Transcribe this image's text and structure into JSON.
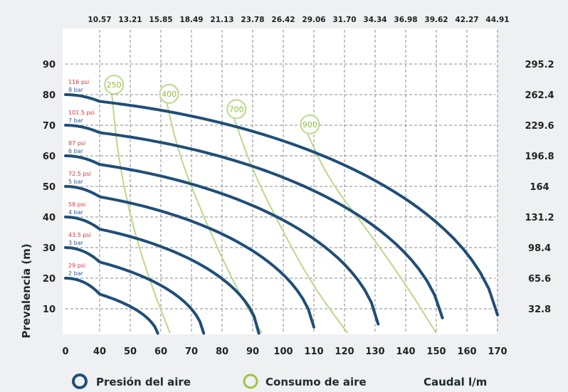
{
  "chart_data": {
    "type": "line",
    "xlabel": "Caudal l/m",
    "ylabel": "Prevalencia (m)",
    "xlim": [
      0,
      170
    ],
    "ylim": [
      0,
      90
    ],
    "x_ticks": [
      "0",
      "40",
      "50",
      "60",
      "70",
      "80",
      "90",
      "100",
      "110",
      "120",
      "130",
      "140",
      "150",
      "160",
      "170"
    ],
    "y_ticks": [
      "10",
      "20",
      "30",
      "40",
      "50",
      "60",
      "70",
      "80",
      "90"
    ],
    "top_ticks": [
      "10.57",
      "13.21",
      "15.85",
      "18.49",
      "21.13",
      "23.78",
      "26.42",
      "29.06",
      "31.70",
      "34.34",
      "36.98",
      "39.62",
      "42.27",
      "44.91"
    ],
    "right_ticks": [
      "32.8",
      "65.6",
      "98.4",
      "131.2",
      "164",
      "196.8",
      "229.6",
      "262.4",
      "295.2"
    ],
    "grid": true,
    "legend": [
      {
        "label": "Presión del aire",
        "color": "#1f4e79"
      },
      {
        "label": "Consumo de aire",
        "color": "#9dc447"
      }
    ],
    "pressure_curves": [
      {
        "psi": "29 psi",
        "bar": "2 bar",
        "start": [
          0,
          20
        ],
        "end": [
          59,
          2
        ]
      },
      {
        "psi": "43.5 psi",
        "bar": "3 bar",
        "start": [
          0,
          30
        ],
        "end": [
          74,
          2
        ]
      },
      {
        "psi": "58 psi",
        "bar": "4 bar",
        "start": [
          0,
          40
        ],
        "end": [
          92,
          2
        ]
      },
      {
        "psi": "72.5 psi",
        "bar": "5 bar",
        "start": [
          0,
          50
        ],
        "end": [
          110,
          4
        ]
      },
      {
        "psi": "87 psi",
        "bar": "6 bar",
        "start": [
          0,
          60
        ],
        "end": [
          131,
          5
        ]
      },
      {
        "psi": "101.5 psi",
        "bar": "7 bar",
        "start": [
          0,
          70
        ],
        "end": [
          152,
          7
        ]
      },
      {
        "psi": "116 psi",
        "bar": "8 bar",
        "start": [
          0,
          80
        ],
        "end": [
          170,
          8
        ]
      }
    ],
    "air_consumption": [
      {
        "label": "250",
        "points": [
          [
            44,
            80
          ],
          [
            46,
            60
          ],
          [
            50,
            40
          ],
          [
            56,
            20
          ],
          [
            63,
            2
          ]
        ]
      },
      {
        "label": "400",
        "points": [
          [
            62,
            77
          ],
          [
            66,
            60
          ],
          [
            74,
            40
          ],
          [
            83,
            20
          ],
          [
            93,
            2
          ]
        ]
      },
      {
        "label": "700",
        "points": [
          [
            84,
            72
          ],
          [
            90,
            55
          ],
          [
            100,
            35
          ],
          [
            110,
            17
          ],
          [
            121,
            2
          ]
        ]
      },
      {
        "label": "900",
        "points": [
          [
            108,
            67
          ],
          [
            115,
            52
          ],
          [
            128,
            35
          ],
          [
            140,
            18
          ],
          [
            150,
            2
          ]
        ]
      }
    ],
    "colors": {
      "pressure": "#1f4e79",
      "consumption": "#b9d98a",
      "bubble_text": "#8bbf35",
      "psi_text": "#d0343a",
      "bar_text": "#2c5aa0",
      "grid": "#8a8a8a"
    }
  }
}
